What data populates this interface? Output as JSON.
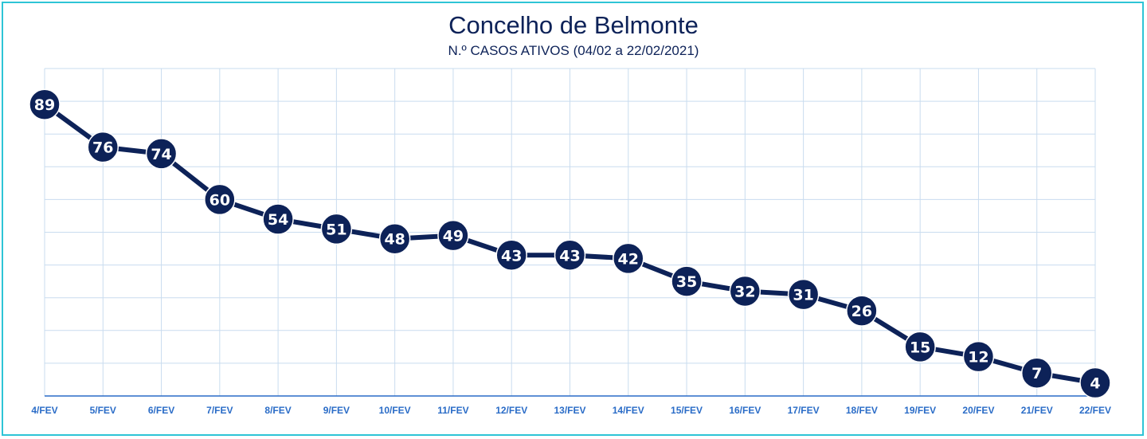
{
  "chart_data": {
    "type": "line",
    "title": "Concelho de Belmonte",
    "subtitle": "N.º CASOS ATIVOS (04/02 a 22/02/2021)",
    "categories": [
      "4/FEV",
      "5/FEV",
      "6/FEV",
      "7/FEV",
      "8/FEV",
      "9/FEV",
      "10/FEV",
      "11/FEV",
      "12/FEV",
      "13/FEV",
      "14/FEV",
      "15/FEV",
      "16/FEV",
      "17/FEV",
      "18/FEV",
      "19/FEV",
      "20/FEV",
      "21/FEV",
      "22/FEV"
    ],
    "values": [
      89,
      76,
      74,
      60,
      54,
      51,
      48,
      49,
      43,
      43,
      42,
      35,
      32,
      31,
      26,
      15,
      12,
      7,
      4
    ],
    "ylim": [
      0,
      100
    ],
    "grid": true,
    "legend": "none",
    "colors": {
      "line": "#0d2258",
      "marker": "#0d2258",
      "marker_text": "#ffffff",
      "grid": "#c9dcef",
      "axis": "#2a6cc7",
      "tick_label": "#2a6cc7",
      "title": "#0d2258",
      "frame": "#2ec4d6"
    }
  }
}
